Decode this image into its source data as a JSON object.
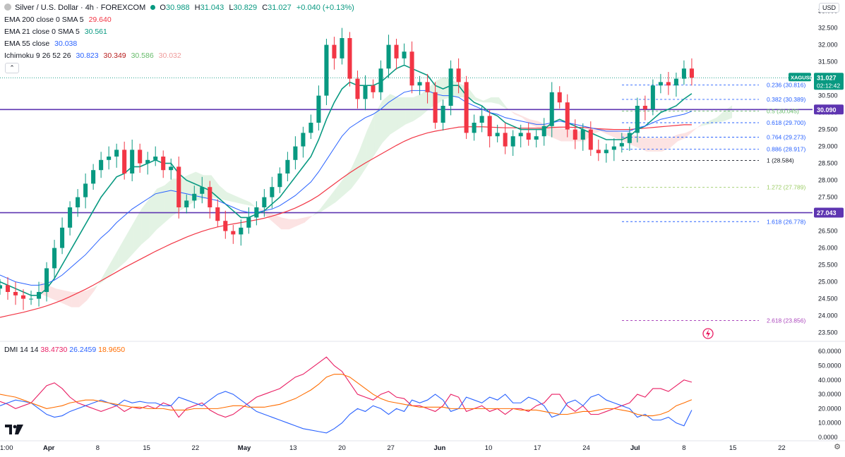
{
  "header": {
    "symbol_title": "Silver / U.S. Dollar · 4h · FOREXCOM",
    "open_label": "O",
    "open_value": "30.988",
    "high_label": "H",
    "high_value": "31.043",
    "low_label": "L",
    "low_value": "30.829",
    "close_label": "C",
    "close_value": "31.027",
    "change_value": "+0.040 (+0.13%)",
    "currency": "USD"
  },
  "indicators": [
    {
      "label": "EMA 200 close 0 SMA 5",
      "value": "29.640",
      "color": "#f23645"
    },
    {
      "label": "EMA 21 close 0 SMA 5",
      "value": "30.561",
      "color": "#089981"
    },
    {
      "label": "EMA 55 close",
      "value": "30.038",
      "color": "#2962ff"
    }
  ],
  "ichimoku": {
    "label": "Ichimoku 9 26 52 26",
    "values": [
      {
        "value": "30.823",
        "color": "#2962ff"
      },
      {
        "value": "30.349",
        "color": "#b71c1c"
      },
      {
        "value": "30.586",
        "color": "#66bb6a"
      },
      {
        "value": "30.032",
        "color": "#ef9a9a"
      }
    ]
  },
  "dmi": {
    "label": "DMI 14 14",
    "values": [
      {
        "value": "38.4730",
        "color": "#e91e63"
      },
      {
        "value": "26.2459",
        "color": "#2962ff"
      },
      {
        "value": "18.9650",
        "color": "#ff6d00"
      }
    ]
  },
  "chart_data": {
    "type": "line",
    "price_axis": {
      "ticks": [
        "33.000",
        "32.500",
        "32.000",
        "31.500",
        "31.000",
        "30.500",
        "30.000",
        "29.500",
        "29.000",
        "28.500",
        "28.000",
        "27.500",
        "27.000",
        "26.500",
        "26.000",
        "25.500",
        "25.000",
        "24.500",
        "24.000",
        "23.500"
      ],
      "range": [
        23.2,
        33.2
      ]
    },
    "dmi_axis": {
      "ticks": [
        "60.0000",
        "50.0000",
        "40.0000",
        "30.0000",
        "20.0000",
        "10.0000",
        "0.0000"
      ],
      "range": [
        0,
        65
      ]
    },
    "x_ticks": [
      "1:00",
      "Apr",
      "8",
      "15",
      "22",
      "May",
      "13",
      "20",
      "27",
      "Jun",
      "10",
      "17",
      "24",
      "Jul",
      "8",
      "15",
      "22"
    ],
    "x_tick_pos": [
      0.0,
      6.3,
      12.6,
      18.9,
      25.2,
      31.5,
      37.8,
      44.1,
      50.4,
      56.7,
      63.0,
      69.3,
      75.6,
      81.9,
      88.2,
      94.5,
      100.8
    ],
    "x_range": [
      0,
      104.5
    ],
    "last_bar_x": 89.2,
    "price_series": {
      "x": [
        0,
        1,
        2,
        3,
        4,
        5,
        6,
        7,
        8,
        9,
        10,
        11,
        12,
        13,
        14,
        15,
        16,
        17,
        18,
        19,
        20,
        21,
        22,
        23,
        24,
        25,
        26,
        27,
        28,
        29,
        30,
        31,
        32,
        33,
        34,
        35,
        36,
        37,
        38,
        39,
        40,
        41,
        42,
        43,
        44,
        45,
        46,
        47,
        48,
        49,
        50,
        51,
        52,
        53,
        54,
        55,
        56,
        57,
        58,
        59,
        60,
        61,
        62,
        63,
        64,
        65,
        66,
        67,
        68,
        69,
        70,
        71,
        72,
        73,
        74,
        75,
        76,
        77,
        78,
        79,
        80,
        81,
        82,
        83,
        84,
        85,
        86,
        87,
        88,
        89
      ],
      "close": [
        24.9,
        24.7,
        24.6,
        24.5,
        24.5,
        24.7,
        25.4,
        26.0,
        26.6,
        27.2,
        27.5,
        27.9,
        28.3,
        28.6,
        28.7,
        28.9,
        28.2,
        28.9,
        28.5,
        28.6,
        28.7,
        28.3,
        28.4,
        27.2,
        27.4,
        27.6,
        27.8,
        27.2,
        26.8,
        26.5,
        26.4,
        26.6,
        26.9,
        27.2,
        27.5,
        27.8,
        28.2,
        28.6,
        29.0,
        29.4,
        29.7,
        30.5,
        32.0,
        31.6,
        32.2,
        31.0,
        30.4,
        30.8,
        30.6,
        31.3,
        32.0,
        31.6,
        31.8,
        30.8,
        30.9,
        30.6,
        29.7,
        30.2,
        31.3,
        30.9,
        29.4,
        29.7,
        29.9,
        29.3,
        29.4,
        29.0,
        29.3,
        29.4,
        29.2,
        29.3,
        29.6,
        30.6,
        30.3,
        29.5,
        29.2,
        29.5,
        28.9,
        28.8,
        28.9,
        29.0,
        29.1,
        29.4,
        30.2,
        30.1,
        30.8,
        30.9,
        30.8,
        31.0,
        31.3,
        31.03
      ],
      "high_offsets_note": ""
    },
    "series": [
      {
        "name": "EMA 200 close 0 SMA 5",
        "values": [
          23.95,
          24.0,
          24.05,
          24.1,
          24.16,
          24.22,
          24.29,
          24.37,
          24.46,
          24.56,
          24.67,
          24.78,
          24.9,
          25.03,
          25.16,
          25.29,
          25.42,
          25.54,
          25.66,
          25.78,
          25.9,
          26.01,
          26.12,
          26.22,
          26.32,
          26.41,
          26.49,
          26.56,
          26.62,
          26.67,
          26.71,
          26.75,
          26.79,
          26.83,
          26.88,
          26.94,
          27.01,
          27.09,
          27.18,
          27.29,
          27.41,
          27.55,
          27.72,
          27.89,
          28.06,
          28.22,
          28.37,
          28.51,
          28.64,
          28.77,
          28.9,
          29.03,
          29.15,
          29.25,
          29.33,
          29.4,
          29.45,
          29.49,
          29.53,
          29.57,
          29.58,
          29.58,
          29.58,
          29.57,
          29.56,
          29.55,
          29.55,
          29.54,
          29.54,
          29.54,
          29.54,
          29.56,
          29.57,
          29.57,
          29.56,
          29.56,
          29.54,
          29.52,
          29.51,
          29.5,
          29.5,
          29.5,
          29.52,
          29.54,
          29.56,
          29.58,
          29.6,
          29.62,
          29.64,
          29.64
        ]
      },
      {
        "name": "EMA 21 close 0 SMA 5",
        "values": [
          25.0,
          24.9,
          24.8,
          24.7,
          24.6,
          24.6,
          24.8,
          25.1,
          25.5,
          25.9,
          26.3,
          26.7,
          27.1,
          27.5,
          27.8,
          28.1,
          28.2,
          28.4,
          28.4,
          28.5,
          28.6,
          28.5,
          28.5,
          28.2,
          28.0,
          27.9,
          27.8,
          27.7,
          27.5,
          27.3,
          27.1,
          26.9,
          26.9,
          27.0,
          27.1,
          27.3,
          27.5,
          27.8,
          28.1,
          28.4,
          28.7,
          29.2,
          29.8,
          30.3,
          30.7,
          30.9,
          30.8,
          30.8,
          30.8,
          30.9,
          31.1,
          31.3,
          31.4,
          31.3,
          31.2,
          31.1,
          30.8,
          30.7,
          30.8,
          30.8,
          30.5,
          30.3,
          30.2,
          30.0,
          29.9,
          29.7,
          29.6,
          29.5,
          29.5,
          29.5,
          29.5,
          29.7,
          29.8,
          29.7,
          29.6,
          29.5,
          29.4,
          29.3,
          29.2,
          29.2,
          29.2,
          29.3,
          29.5,
          29.6,
          29.8,
          30.0,
          30.1,
          30.2,
          30.4,
          30.56
        ]
      },
      {
        "name": "EMA 55 close",
        "values": [
          25.2,
          25.1,
          25.0,
          24.95,
          24.9,
          24.9,
          24.95,
          25.05,
          25.2,
          25.4,
          25.6,
          25.8,
          26.05,
          26.3,
          26.5,
          26.75,
          26.95,
          27.15,
          27.3,
          27.45,
          27.6,
          27.65,
          27.7,
          27.65,
          27.6,
          27.55,
          27.5,
          27.45,
          27.4,
          27.3,
          27.2,
          27.1,
          27.05,
          27.05,
          27.1,
          27.15,
          27.25,
          27.4,
          27.55,
          27.75,
          27.95,
          28.25,
          28.6,
          28.95,
          29.3,
          29.55,
          29.7,
          29.85,
          29.95,
          30.1,
          30.3,
          30.45,
          30.6,
          30.65,
          30.65,
          30.65,
          30.55,
          30.5,
          30.5,
          30.45,
          30.3,
          30.2,
          30.1,
          30.0,
          29.95,
          29.85,
          29.8,
          29.75,
          29.7,
          29.65,
          29.65,
          29.7,
          29.75,
          29.7,
          29.65,
          29.6,
          29.55,
          29.5,
          29.45,
          29.45,
          29.45,
          29.45,
          29.55,
          29.6,
          29.7,
          29.8,
          29.85,
          29.9,
          29.95,
          30.04
        ]
      },
      {
        "name": "DMI +DI",
        "values": [
          25,
          23,
          20,
          22,
          24,
          30,
          36,
          38,
          34,
          28,
          24,
          22,
          20,
          18,
          20,
          22,
          18,
          21,
          20,
          22,
          20,
          24,
          22,
          14,
          20,
          22,
          24,
          19,
          16,
          14,
          16,
          20,
          24,
          28,
          30,
          32,
          34,
          38,
          42,
          44,
          48,
          52,
          56,
          50,
          46,
          38,
          30,
          28,
          26,
          30,
          32,
          28,
          27,
          22,
          22,
          20,
          18,
          22,
          30,
          28,
          18,
          20,
          22,
          18,
          20,
          16,
          20,
          20,
          18,
          22,
          24,
          30,
          30,
          22,
          18,
          22,
          16,
          16,
          18,
          20,
          22,
          24,
          30,
          28,
          34,
          34,
          32,
          36,
          40,
          38.47
        ]
      },
      {
        "name": "DMI -DI",
        "values": [
          22,
          24,
          26,
          25,
          24,
          20,
          16,
          14,
          15,
          18,
          20,
          22,
          24,
          26,
          24,
          22,
          26,
          24,
          25,
          24,
          24,
          22,
          22,
          28,
          26,
          24,
          22,
          26,
          30,
          32,
          30,
          26,
          22,
          18,
          16,
          14,
          12,
          10,
          8,
          6,
          5,
          4,
          3,
          6,
          10,
          16,
          20,
          18,
          22,
          20,
          16,
          20,
          18,
          26,
          24,
          26,
          30,
          26,
          18,
          20,
          28,
          26,
          24,
          28,
          26,
          30,
          24,
          24,
          28,
          26,
          22,
          14,
          16,
          24,
          26,
          22,
          28,
          30,
          26,
          24,
          22,
          20,
          14,
          16,
          12,
          12,
          14,
          10,
          8,
          18.965
        ]
      },
      {
        "name": "DMI ADX",
        "values": [
          30,
          29,
          28,
          26,
          24,
          22,
          20,
          21,
          22,
          24,
          25,
          26,
          26,
          25,
          24,
          23,
          22,
          21,
          21,
          20,
          20,
          20,
          19,
          19,
          19,
          20,
          20,
          20,
          20,
          21,
          22,
          22,
          21,
          21,
          21,
          22,
          23,
          25,
          27,
          30,
          33,
          37,
          42,
          44,
          44,
          42,
          38,
          34,
          30,
          27,
          25,
          24,
          23,
          22,
          21,
          21,
          21,
          21,
          20,
          20,
          20,
          20,
          20,
          20,
          20,
          20,
          20,
          19,
          19,
          19,
          18,
          17,
          16,
          16,
          17,
          18,
          18,
          19,
          20,
          20,
          19,
          18,
          16,
          15,
          15,
          16,
          18,
          22,
          24,
          26.2459
        ]
      }
    ],
    "horizontal_levels": [
      {
        "value": 30.09,
        "label": "30.090",
        "color": "#5e35b1"
      },
      {
        "value": 27.043,
        "label": "27.043",
        "color": "#5e35b1"
      }
    ],
    "fibonacci": [
      {
        "label": "0.236 (30.816)",
        "value": 30.816,
        "color": "#2962ff"
      },
      {
        "label": "0.382 (30.389)",
        "value": 30.389,
        "color": "#2962ff"
      },
      {
        "label": "0.5 (30.045)",
        "value": 30.045,
        "color": "#66bb6a"
      },
      {
        "label": "0.618 (29.700)",
        "value": 29.7,
        "color": "#2962ff"
      },
      {
        "label": "0.764 (29.273)",
        "value": 29.273,
        "color": "#2962ff"
      },
      {
        "label": "0.886 (28.917)",
        "value": 28.917,
        "color": "#2962ff"
      },
      {
        "label": "1 (28.584)",
        "value": 28.584,
        "color": "#131722"
      },
      {
        "label": "1.272 (27.789)",
        "value": 27.789,
        "color": "#9ccc65"
      },
      {
        "label": "1.618 (26.778)",
        "value": 26.778,
        "color": "#2962ff"
      },
      {
        "label": "2.618 (23.856)",
        "value": 23.856,
        "color": "#ab47bc"
      }
    ],
    "fib_x_start": 80.2,
    "price_tag": {
      "symbol": "XAGUSD",
      "price": "31.027",
      "countdown": "02:12:42",
      "value": 31.027
    },
    "current_price_line": 31.027
  }
}
